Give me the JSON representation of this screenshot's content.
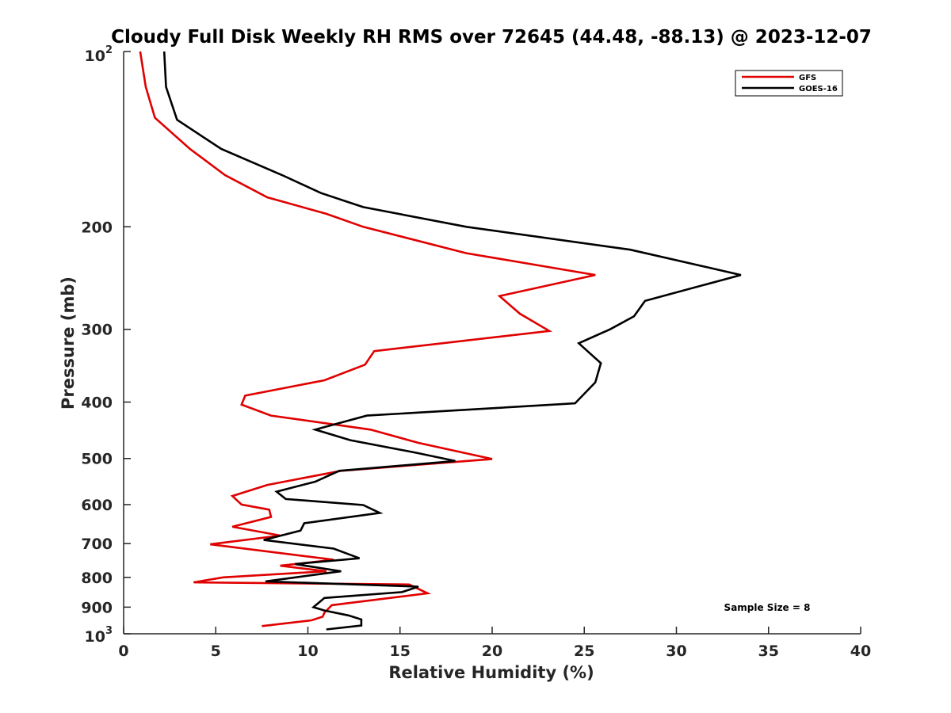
{
  "chart_data": {
    "type": "line",
    "title": "Cloudy Full Disk Weekly RH RMS over 72645 (44.48, -88.13) @ 2023-12-07",
    "xlabel": "Relative Humidity (%)",
    "ylabel": "Pressure (mb)",
    "xlim": [
      0,
      40
    ],
    "ylim": [
      100,
      1000
    ],
    "y_scale": "log",
    "y_reversed": true,
    "x_ticks": [
      0,
      5,
      10,
      15,
      20,
      25,
      30,
      35,
      40
    ],
    "x_tick_labels": [
      "0",
      "5",
      "10",
      "15",
      "20",
      "25",
      "30",
      "35",
      "40"
    ],
    "y_ticks": [
      200,
      300,
      400,
      500,
      600,
      700,
      800,
      900
    ],
    "y_tick_labels": [
      "200",
      "300",
      "400",
      "500",
      "600",
      "700",
      "800",
      "900"
    ],
    "y_top_label": {
      "base": "10",
      "exp": "2"
    },
    "y_bottom_label": {
      "base": "10",
      "exp": "3"
    },
    "grid": false,
    "legend_position": "top-right",
    "annotation": "Sample Size = 8",
    "series": [
      {
        "name": "GFS",
        "color": "#e00000",
        "points": [
          [
            0.9,
            100
          ],
          [
            1.2,
            115
          ],
          [
            1.7,
            130
          ],
          [
            3.6,
            147
          ],
          [
            5.5,
            163
          ],
          [
            7.8,
            178
          ],
          [
            11.0,
            190
          ],
          [
            13.0,
            200
          ],
          [
            18.6,
            222
          ],
          [
            25.6,
            242
          ],
          [
            20.4,
            263
          ],
          [
            21.5,
            282
          ],
          [
            23.1,
            302
          ],
          [
            13.6,
            327
          ],
          [
            13.1,
            345
          ],
          [
            10.9,
            367
          ],
          [
            6.6,
            390
          ],
          [
            6.4,
            404
          ],
          [
            8.0,
            422
          ],
          [
            13.4,
            446
          ],
          [
            16.0,
            470
          ],
          [
            20.0,
            501
          ],
          [
            11.8,
            525
          ],
          [
            7.8,
            555
          ],
          [
            5.9,
            580
          ],
          [
            6.4,
            600
          ],
          [
            7.9,
            612
          ],
          [
            8.0,
            630
          ],
          [
            5.9,
            655
          ],
          [
            8.5,
            678
          ],
          [
            4.7,
            702
          ],
          [
            11.4,
            746
          ],
          [
            8.5,
            764
          ],
          [
            11.0,
            781
          ],
          [
            5.4,
            800
          ],
          [
            3.8,
            816
          ],
          [
            15.5,
            823
          ],
          [
            16.5,
            852
          ],
          [
            11.3,
            893
          ],
          [
            10.9,
            920
          ],
          [
            10.8,
            935
          ],
          [
            10.2,
            948
          ],
          [
            7.5,
            970
          ]
        ]
      },
      {
        "name": "GOES-16",
        "color": "#000000",
        "points": [
          [
            2.2,
            100
          ],
          [
            2.3,
            115
          ],
          [
            2.9,
            131
          ],
          [
            5.3,
            147
          ],
          [
            8.6,
            163
          ],
          [
            10.7,
            175
          ],
          [
            13.0,
            185
          ],
          [
            18.6,
            200
          ],
          [
            27.5,
            219
          ],
          [
            33.5,
            242
          ],
          [
            28.3,
            268
          ],
          [
            27.7,
            285
          ],
          [
            26.4,
            300
          ],
          [
            24.7,
            317
          ],
          [
            25.9,
            343
          ],
          [
            25.6,
            370
          ],
          [
            24.5,
            402
          ],
          [
            13.2,
            422
          ],
          [
            10.4,
            446
          ],
          [
            12.3,
            465
          ],
          [
            15.9,
            489
          ],
          [
            18.0,
            505
          ],
          [
            11.7,
            525
          ],
          [
            10.4,
            548
          ],
          [
            8.3,
            570
          ],
          [
            8.8,
            587
          ],
          [
            13.0,
            601
          ],
          [
            13.9,
            620
          ],
          [
            9.8,
            646
          ],
          [
            9.6,
            665
          ],
          [
            7.6,
            690
          ],
          [
            11.4,
            714
          ],
          [
            12.8,
            742
          ],
          [
            9.3,
            759
          ],
          [
            11.8,
            781
          ],
          [
            7.7,
            813
          ],
          [
            16.0,
            830
          ],
          [
            15.1,
            848
          ],
          [
            10.9,
            868
          ],
          [
            10.3,
            900
          ],
          [
            10.9,
            912
          ],
          [
            12.2,
            930
          ],
          [
            12.9,
            945
          ],
          [
            12.9,
            968
          ],
          [
            11.0,
            983
          ]
        ]
      }
    ]
  }
}
